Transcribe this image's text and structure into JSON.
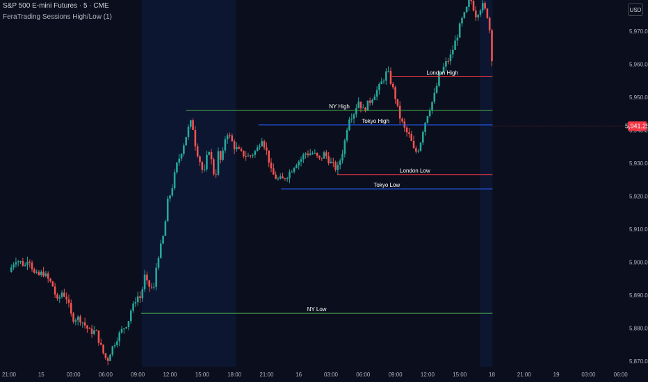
{
  "header": {
    "title": "S&P 500 E-mini Futures · 5 · CME",
    "indicator": "FeraTrading Sessions High/Low (1)",
    "currency_button": "USD"
  },
  "colors": {
    "background": "#0b0f1d",
    "session_shade": "#0c1631",
    "candle_up": "#26a69a",
    "candle_down": "#ef5350",
    "ny_line": "#4caf50",
    "london_line": "#f23645",
    "tokyo_line": "#2962ff",
    "price_label_bg": "#f23645"
  },
  "chart_data": {
    "type": "candlestick",
    "instrument": "S&P 500 E-mini Futures",
    "timeframe": "5",
    "exchange": "CME",
    "y_range": [
      5868,
      5986
    ],
    "y_ticks": [
      "5,870.00",
      "5,880.00",
      "5,890.00",
      "5,900.00",
      "5,910.00",
      "5,920.00",
      "5,930.00",
      "5,940.00",
      "5,950.00",
      "5,960.00",
      "5,970.00"
    ],
    "y_tick_values": [
      5870,
      5880,
      5890,
      5900,
      5910,
      5920,
      5930,
      5940,
      5950,
      5960,
      5970
    ],
    "x_ticks": [
      "21:00",
      "15",
      "03:00",
      "06:00",
      "09:00",
      "12:00",
      "15:00",
      "18:00",
      "21:00",
      "16",
      "03:00",
      "06:00",
      "09:00",
      "12:00",
      "15:00",
      "18",
      "21:00",
      "19",
      "03:00",
      "06:00"
    ],
    "x_tick_index": [
      0,
      1,
      2,
      3,
      4,
      5,
      6,
      7,
      8,
      9,
      10,
      11,
      12,
      13,
      14,
      15,
      16,
      17,
      18,
      19
    ],
    "last_price": 5941.25,
    "last_price_label": "5,941.25",
    "price_path": [
      [
        0,
        5897
      ],
      [
        0.1,
        5899
      ],
      [
        0.2,
        5901
      ],
      [
        0.35,
        5900
      ],
      [
        0.5,
        5899
      ],
      [
        0.6,
        5902
      ],
      [
        0.8,
        5896
      ],
      [
        0.95,
        5896
      ],
      [
        1.05,
        5897
      ],
      [
        1.2,
        5895
      ],
      [
        1.35,
        5893
      ],
      [
        1.5,
        5888
      ],
      [
        1.65,
        5891
      ],
      [
        1.8,
        5889
      ],
      [
        1.92,
        5884
      ],
      [
        2.0,
        5883
      ],
      [
        2.2,
        5883
      ],
      [
        2.5,
        5879
      ],
      [
        2.7,
        5879
      ],
      [
        2.9,
        5873
      ],
      [
        3.05,
        5870
      ],
      [
        3.15,
        5873
      ],
      [
        3.35,
        5877
      ],
      [
        3.55,
        5880
      ],
      [
        3.7,
        5882
      ],
      [
        3.8,
        5886
      ],
      [
        3.9,
        5887
      ],
      [
        3.95,
        5890
      ],
      [
        4.1,
        5889
      ],
      [
        4.2,
        5896
      ],
      [
        4.3,
        5893
      ],
      [
        4.5,
        5892
      ],
      [
        4.6,
        5901
      ],
      [
        4.7,
        5904
      ],
      [
        4.82,
        5909
      ],
      [
        4.92,
        5918
      ],
      [
        5.05,
        5922
      ],
      [
        5.2,
        5929
      ],
      [
        5.4,
        5935
      ],
      [
        5.55,
        5940
      ],
      [
        5.68,
        5943
      ],
      [
        5.8,
        5935
      ],
      [
        5.95,
        5930
      ],
      [
        6.05,
        5926
      ],
      [
        6.2,
        5935
      ],
      [
        6.4,
        5925
      ],
      [
        6.5,
        5933
      ],
      [
        6.6,
        5930
      ],
      [
        6.75,
        5940
      ],
      [
        6.9,
        5937
      ],
      [
        7.0,
        5935
      ],
      [
        7.2,
        5933
      ],
      [
        7.45,
        5932
      ],
      [
        7.7,
        5934
      ],
      [
        7.85,
        5938
      ],
      [
        7.95,
        5935
      ],
      [
        8.05,
        5932
      ],
      [
        8.15,
        5927
      ],
      [
        8.35,
        5925
      ],
      [
        8.5,
        5925
      ],
      [
        8.7,
        5927
      ],
      [
        8.9,
        5930
      ],
      [
        9.05,
        5931
      ],
      [
        9.2,
        5933
      ],
      [
        9.45,
        5933
      ],
      [
        9.65,
        5931
      ],
      [
        9.8,
        5933
      ],
      [
        10.0,
        5930
      ],
      [
        10.2,
        5928
      ],
      [
        10.4,
        5935
      ],
      [
        10.55,
        5944
      ],
      [
        10.7,
        5945
      ],
      [
        10.85,
        5949
      ],
      [
        11.0,
        5946
      ],
      [
        11.15,
        5948
      ],
      [
        11.35,
        5951
      ],
      [
        11.5,
        5953
      ],
      [
        11.75,
        5958
      ],
      [
        11.85,
        5955
      ],
      [
        12.0,
        5950
      ],
      [
        12.1,
        5945
      ],
      [
        12.3,
        5940
      ],
      [
        12.45,
        5938
      ],
      [
        12.6,
        5933
      ],
      [
        12.75,
        5935
      ],
      [
        12.85,
        5940
      ],
      [
        13.0,
        5945
      ],
      [
        13.2,
        5950
      ],
      [
        13.35,
        5956
      ],
      [
        13.55,
        5960
      ],
      [
        13.7,
        5962
      ],
      [
        13.9,
        5968
      ],
      [
        14.05,
        5973
      ],
      [
        14.2,
        5976
      ],
      [
        14.3,
        5981
      ],
      [
        14.5,
        5975
      ],
      [
        14.7,
        5978
      ],
      [
        14.9,
        5974
      ],
      [
        15.0,
        5962
      ],
      [
        15.02,
        5941
      ]
    ],
    "session_lines": [
      {
        "label": "NY High",
        "price": 5946,
        "start": 5.5,
        "end": 15.02,
        "color": "#4caf50"
      },
      {
        "label": "NY Low",
        "price": 5884.5,
        "start": 4.1,
        "end": 15.02,
        "color": "#4caf50"
      },
      {
        "label": "London High",
        "price": 5956.2,
        "start": 11.9,
        "end": 15.02,
        "color": "#f23645"
      },
      {
        "label": "London Low",
        "price": 5926.5,
        "start": 10.2,
        "end": 15.02,
        "color": "#f23645"
      },
      {
        "label": "Tokyo High",
        "price": 5941.6,
        "start": 7.75,
        "end": 15.02,
        "color": "#2962ff"
      },
      {
        "label": "Tokyo Low",
        "price": 5922.2,
        "start": 8.45,
        "end": 15.02,
        "color": "#2962ff"
      }
    ],
    "session_shading": [
      {
        "start": 4.12,
        "end": 7.05
      },
      {
        "start": 14.63,
        "end": 15.02
      }
    ]
  }
}
